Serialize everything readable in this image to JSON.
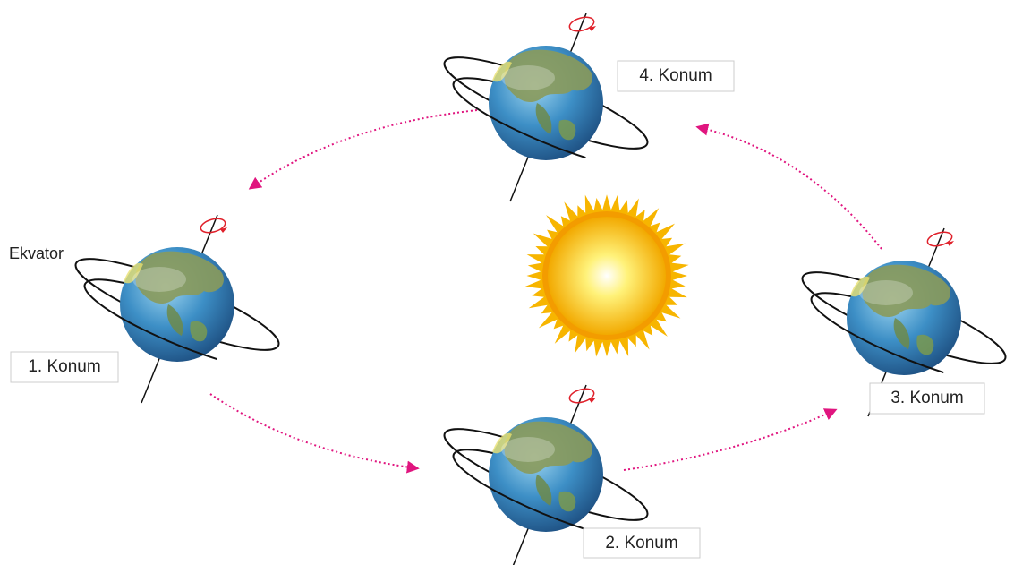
{
  "equator_label": "Ekvator",
  "positions": [
    {
      "label": "1. Konum"
    },
    {
      "label": "2. Konum"
    },
    {
      "label": "3. Konum"
    },
    {
      "label": "4. Konum"
    }
  ]
}
